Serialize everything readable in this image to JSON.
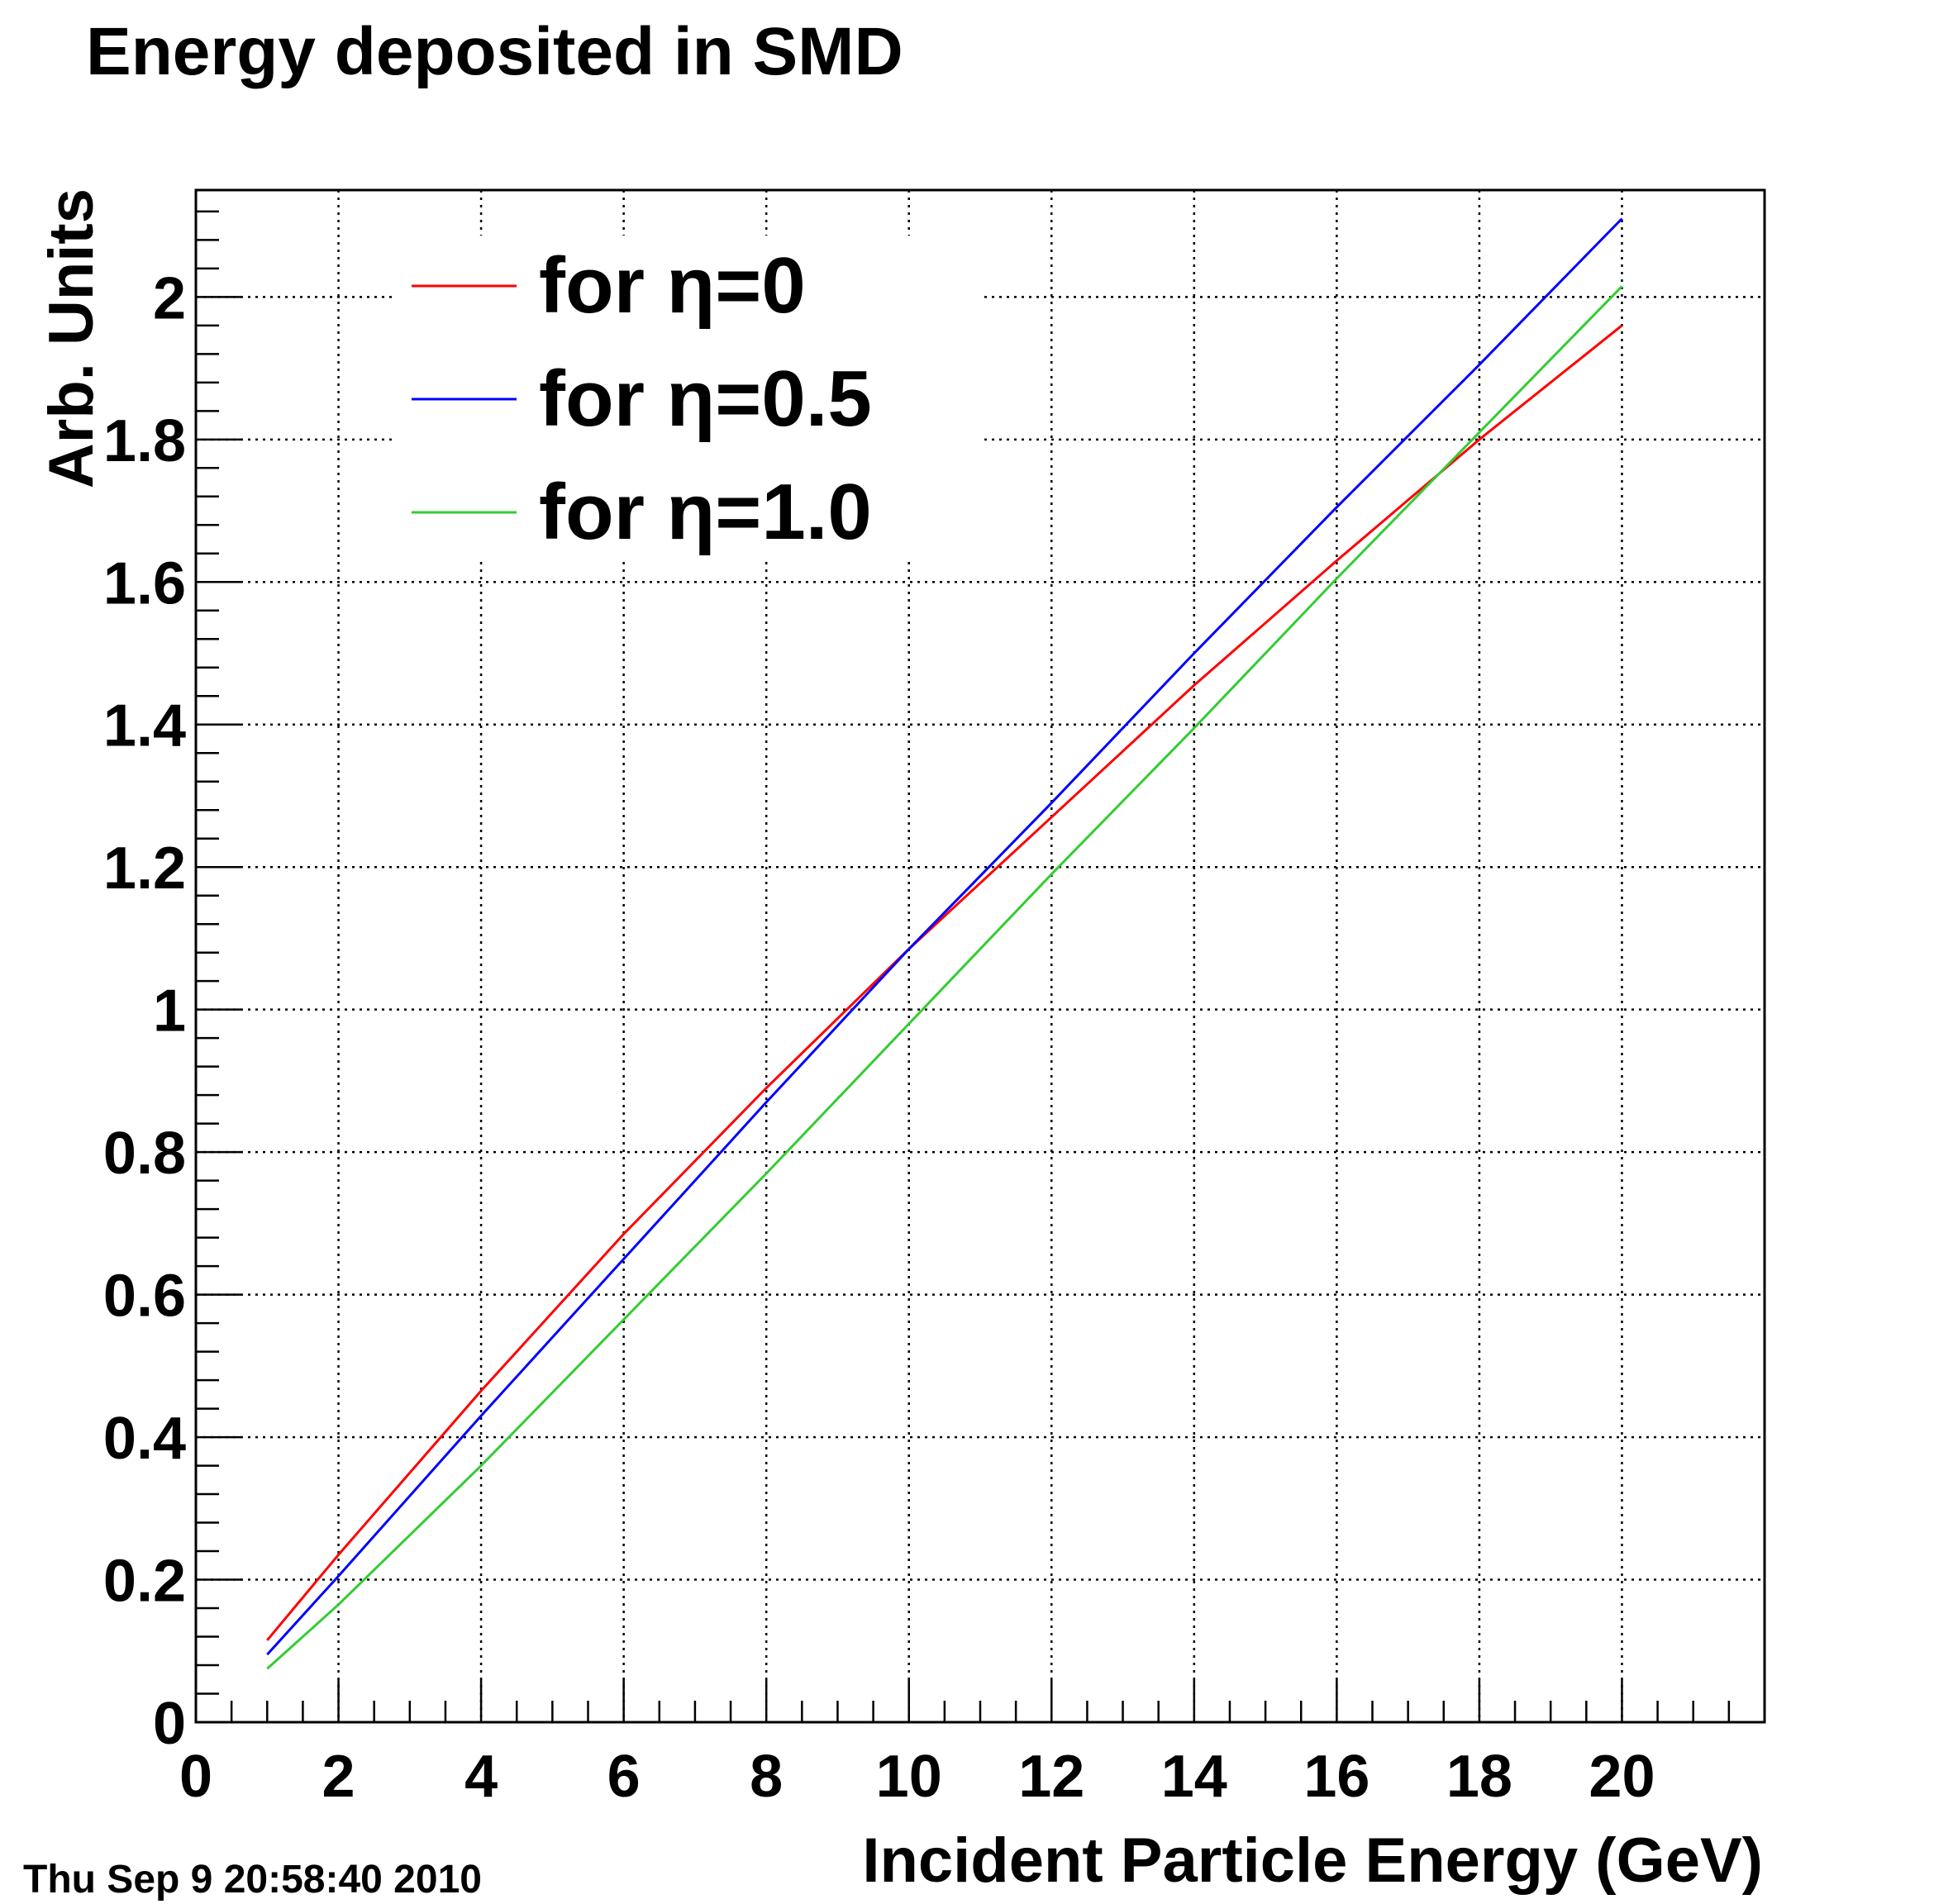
{
  "chart_data": {
    "type": "line",
    "title": "Energy deposited in SMD",
    "xlabel": "Incident Particle Energy (GeV)",
    "ylabel": "Arb. Units",
    "xlim": [
      0,
      22
    ],
    "ylim": [
      0,
      2.15
    ],
    "x_ticks": [
      0,
      2,
      4,
      6,
      8,
      10,
      12,
      14,
      16,
      18,
      20
    ],
    "y_ticks": [
      0,
      0.2,
      0.4,
      0.6,
      0.8,
      1,
      1.2,
      1.4,
      1.6,
      1.8,
      2
    ],
    "x_tick_labels": [
      "0",
      "2",
      "4",
      "6",
      "8",
      "10",
      "12",
      "14",
      "16",
      "18",
      "20"
    ],
    "y_tick_labels": [
      "0",
      "0.2",
      "0.4",
      "0.6",
      "0.8",
      "1",
      "1.2",
      "1.4",
      "1.6",
      "1.8",
      "2"
    ],
    "grid": true,
    "legend_position": "top-left",
    "x": [
      1,
      2,
      4,
      6,
      8,
      10,
      12,
      14,
      16,
      18,
      20
    ],
    "series": [
      {
        "name": "for η=0",
        "color": "#ff0000",
        "values": [
          0.115,
          0.235,
          0.465,
          0.685,
          0.89,
          1.085,
          1.27,
          1.455,
          1.63,
          1.8,
          1.96
        ]
      },
      {
        "name": "for η=0.5",
        "color": "#0000ff",
        "values": [
          0.095,
          0.205,
          0.43,
          0.65,
          0.87,
          1.085,
          1.29,
          1.5,
          1.705,
          1.905,
          2.11
        ]
      },
      {
        "name": "for η=1.0",
        "color": "#33cc33",
        "values": [
          0.075,
          0.165,
          0.36,
          0.565,
          0.77,
          0.98,
          1.19,
          1.395,
          1.605,
          1.81,
          2.015
        ]
      }
    ]
  },
  "footer": {
    "timestamp": "Thu Sep  9 20:58:40 2010"
  }
}
